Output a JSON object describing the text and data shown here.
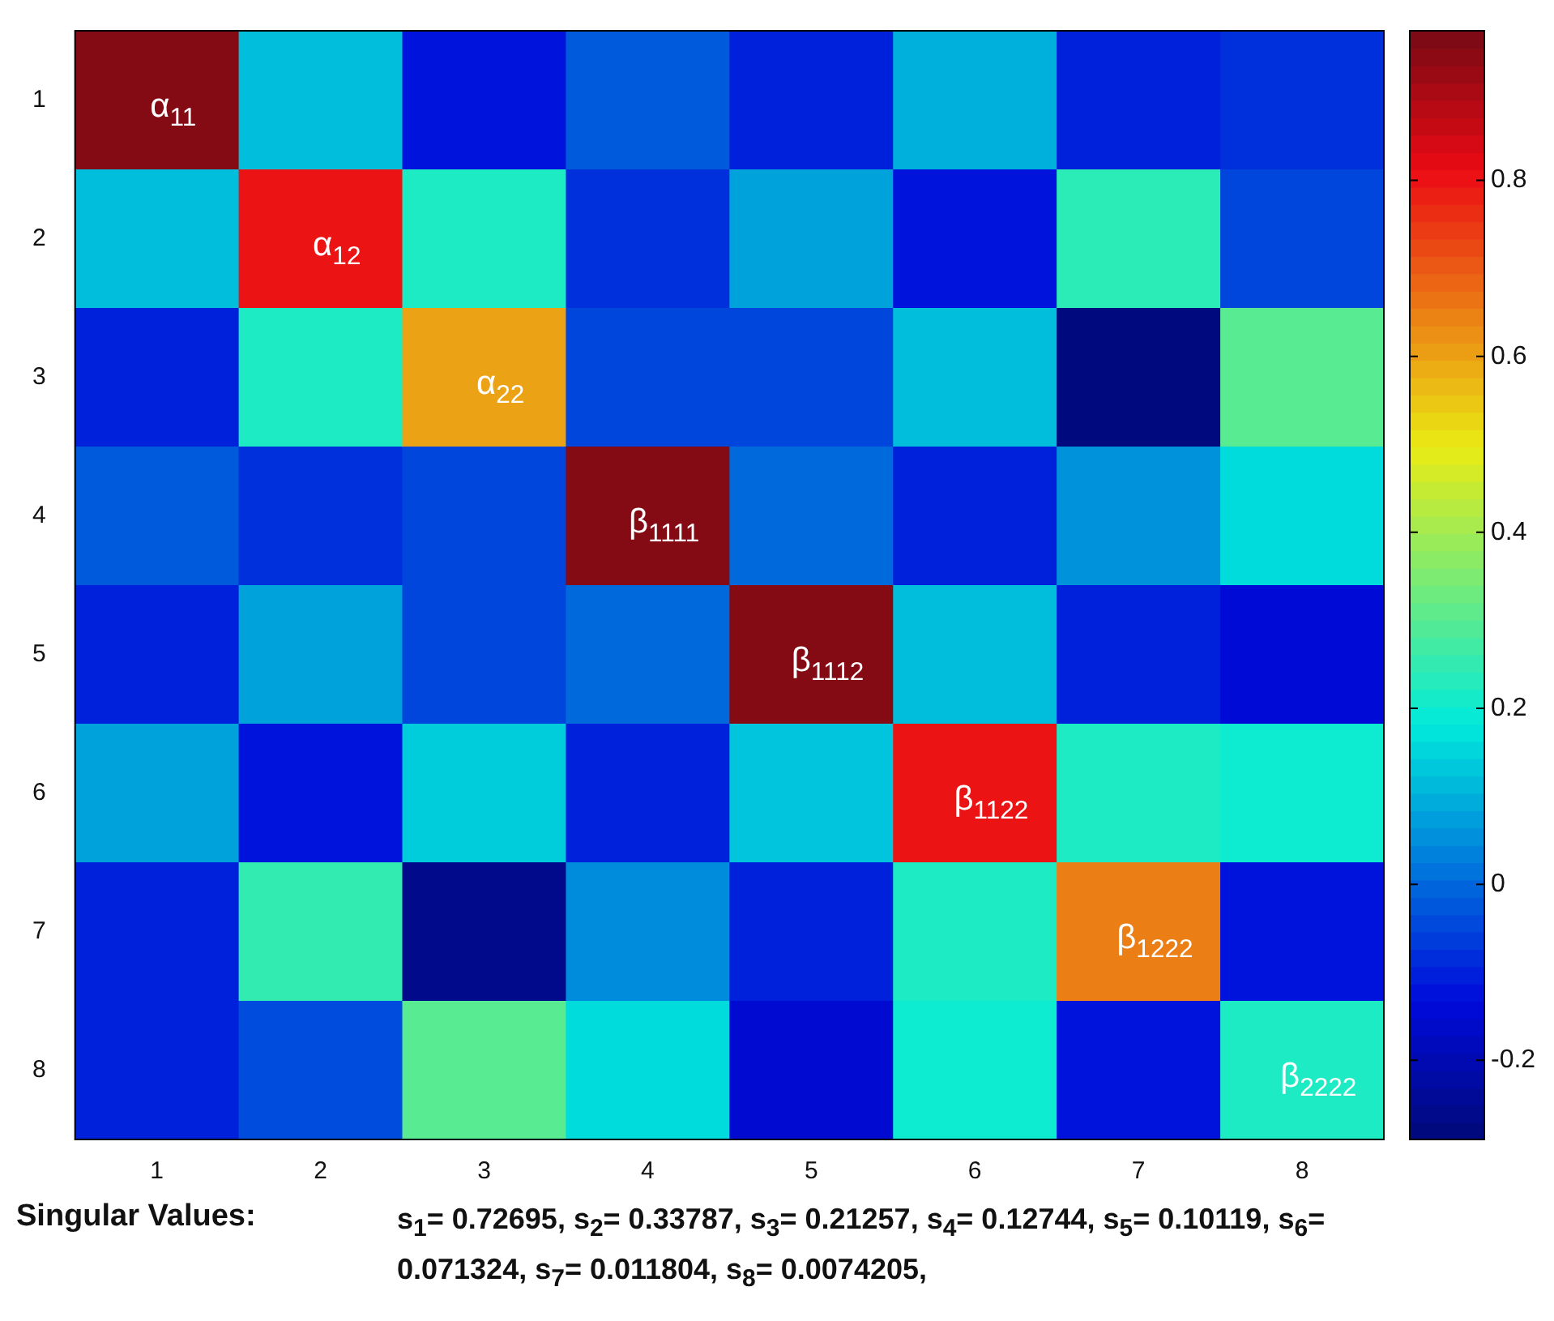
{
  "chart_data": {
    "type": "heatmap",
    "categories": [
      "1",
      "2",
      "3",
      "4",
      "5",
      "6",
      "7",
      "8"
    ],
    "y_categories": [
      "1",
      "2",
      "3",
      "4",
      "5",
      "6",
      "7",
      "8"
    ],
    "cells": [
      [
        0.95,
        0.12,
        -0.12,
        -0.02,
        -0.1,
        0.1,
        -0.1,
        -0.08
      ],
      [
        0.12,
        0.8,
        0.22,
        -0.08,
        0.08,
        -0.12,
        0.24,
        -0.05
      ],
      [
        -0.1,
        0.22,
        0.6,
        -0.05,
        -0.05,
        0.12,
        -0.28,
        0.3
      ],
      [
        -0.02,
        -0.08,
        -0.05,
        0.95,
        0.0,
        -0.1,
        0.06,
        0.16
      ],
      [
        -0.1,
        0.08,
        -0.05,
        0.0,
        0.95,
        0.12,
        -0.1,
        -0.14
      ],
      [
        0.08,
        -0.12,
        0.14,
        -0.1,
        0.13,
        0.8,
        0.22,
        0.2
      ],
      [
        -0.1,
        0.25,
        -0.26,
        0.05,
        -0.1,
        0.22,
        0.65,
        -0.12
      ],
      [
        -0.1,
        -0.04,
        0.3,
        0.16,
        -0.15,
        0.2,
        -0.12,
        0.22
      ]
    ],
    "clim": [
      -0.29,
      0.97
    ],
    "cticks": [
      -0.2,
      0,
      0.2,
      0.4,
      0.6,
      0.8
    ],
    "annotations": [
      "α$_{11}$",
      "α$_{12}$",
      "α$_{22}$",
      "β$_{1111}$",
      "β$_{1112}$",
      "β$_{1122}$",
      "β$_{1222}$",
      "β$_{2222}$",
      "Singular Values:",
      "s$_{1}$= 0.72695, s$_{2}$= 0.33787, s$_{3}$= 0.21257, s$_{4}$= 0.12744, s$_{5}$= 0.10119, s$_{6}$= 0.071324, s$_{7}$= 0.011804, s$_{8}$= 0.0074205,"
    ]
  }
}
